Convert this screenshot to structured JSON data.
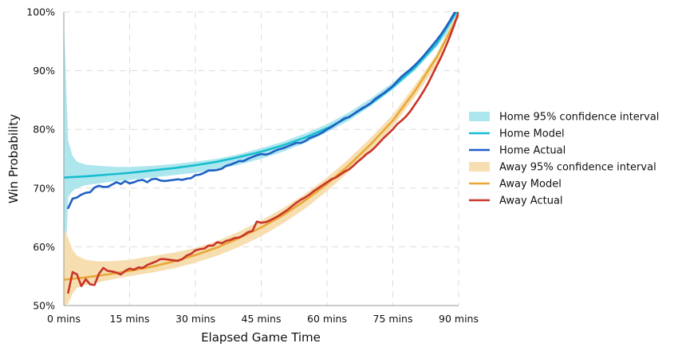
{
  "chart_data": {
    "type": "line",
    "title": "",
    "xlabel": "Elapsed Game Time",
    "ylabel": "Win Probability",
    "xlim": [
      0,
      90
    ],
    "ylim": [
      50,
      100
    ],
    "x_ticks": [
      {
        "value": 0,
        "label": "0 mins"
      },
      {
        "value": 15,
        "label": "15 mins"
      },
      {
        "value": 30,
        "label": "30 mins"
      },
      {
        "value": 45,
        "label": "45 mins"
      },
      {
        "value": 60,
        "label": "60 mins"
      },
      {
        "value": 75,
        "label": "75 mins"
      },
      {
        "value": 90,
        "label": "90 mins"
      }
    ],
    "y_ticks": [
      {
        "value": 50,
        "label": "50%"
      },
      {
        "value": 60,
        "label": "60%"
      },
      {
        "value": 70,
        "label": "70%"
      },
      {
        "value": 80,
        "label": "80%"
      },
      {
        "value": 90,
        "label": "90%"
      },
      {
        "value": 100,
        "label": "100%"
      }
    ],
    "grid": true,
    "legend_position": "right",
    "series": [
      {
        "name": "Home 95% confidence interval",
        "kind": "band",
        "color": "#aee6ee",
        "x": [
          0,
          1,
          2,
          3,
          5,
          8,
          12,
          15,
          20,
          25,
          30,
          35,
          40,
          45,
          50,
          55,
          60,
          65,
          70,
          75,
          80,
          85,
          88,
          90
        ],
        "lower": [
          50,
          68.5,
          69.5,
          70.0,
          70.5,
          70.8,
          71.2,
          71.4,
          71.8,
          72.2,
          72.6,
          73.2,
          74.0,
          75.0,
          76.2,
          77.7,
          79.5,
          81.5,
          84.0,
          86.8,
          90.0,
          94.0,
          97.0,
          100
        ],
        "upper": [
          99,
          78.0,
          75.5,
          74.5,
          74.0,
          73.8,
          73.6,
          73.6,
          73.8,
          74.1,
          74.5,
          75.0,
          75.8,
          76.8,
          77.9,
          79.3,
          80.9,
          82.9,
          85.3,
          88.0,
          91.2,
          95.0,
          97.8,
          100
        ]
      },
      {
        "name": "Home Model",
        "kind": "line",
        "color": "#17becf",
        "x": [
          0,
          5,
          10,
          15,
          20,
          25,
          30,
          35,
          40,
          45,
          50,
          55,
          60,
          65,
          70,
          75,
          80,
          85,
          90
        ],
        "y": [
          71.8,
          72.0,
          72.3,
          72.6,
          73.0,
          73.4,
          73.9,
          74.5,
          75.3,
          76.2,
          77.3,
          78.6,
          80.2,
          82.1,
          84.4,
          87.2,
          90.5,
          94.6,
          100.5
        ]
      },
      {
        "name": "Home Actual",
        "kind": "line",
        "color": "#1f5fc4",
        "x": [
          1,
          2,
          3,
          4,
          5,
          6,
          7,
          8,
          9,
          10,
          11,
          12,
          13,
          14,
          15,
          16,
          17,
          18,
          19,
          20,
          21,
          22,
          23,
          24,
          25,
          26,
          27,
          28,
          29,
          30,
          31,
          32,
          33,
          34,
          35,
          36,
          37,
          38,
          39,
          40,
          41,
          42,
          43,
          44,
          45,
          46,
          47,
          48,
          49,
          50,
          51,
          52,
          53,
          54,
          55,
          56,
          57,
          58,
          59,
          60,
          61,
          62,
          63,
          64,
          65,
          66,
          67,
          68,
          69,
          70,
          71,
          72,
          73,
          74,
          75,
          76,
          77,
          78,
          79,
          80,
          81,
          82,
          83,
          84,
          85,
          86,
          87,
          88,
          89,
          90
        ],
        "y": [
          66.6,
          68.2,
          68.4,
          68.9,
          69.2,
          69.3,
          70.1,
          70.4,
          70.2,
          70.2,
          70.6,
          71.0,
          70.7,
          71.2,
          70.8,
          71.0,
          71.3,
          71.4,
          71.0,
          71.5,
          71.6,
          71.3,
          71.2,
          71.3,
          71.4,
          71.5,
          71.4,
          71.6,
          71.7,
          72.2,
          72.3,
          72.6,
          73.0,
          73.0,
          73.1,
          73.3,
          73.8,
          74.0,
          74.3,
          74.6,
          74.6,
          75.0,
          75.3,
          75.6,
          75.8,
          75.7,
          75.9,
          76.3,
          76.6,
          76.8,
          77.1,
          77.4,
          77.7,
          77.7,
          78.0,
          78.5,
          78.8,
          79.1,
          79.5,
          80.0,
          80.4,
          80.9,
          81.4,
          81.9,
          82.1,
          82.6,
          83.1,
          83.6,
          84.0,
          84.5,
          85.2,
          85.7,
          86.2,
          86.8,
          87.4,
          88.2,
          89.0,
          89.6,
          90.2,
          90.9,
          91.7,
          92.5,
          93.4,
          94.3,
          95.2,
          96.2,
          97.3,
          98.5,
          99.8,
          101.0
        ]
      },
      {
        "name": "Away 95% confidence interval",
        "kind": "band",
        "color": "#f7deb0",
        "x": [
          0,
          1,
          2,
          3,
          5,
          8,
          12,
          15,
          20,
          25,
          30,
          35,
          40,
          45,
          50,
          55,
          60,
          65,
          70,
          75,
          80,
          85,
          88,
          90
        ],
        "lower": [
          50,
          50.3,
          52.0,
          53.0,
          53.5,
          54.0,
          54.6,
          55.0,
          55.6,
          56.3,
          57.3,
          58.5,
          60.0,
          61.8,
          64.0,
          66.5,
          69.5,
          72.8,
          76.5,
          80.5,
          85.5,
          91.0,
          96.5,
          100
        ],
        "upper": [
          63,
          61.5,
          59.5,
          58.5,
          57.8,
          57.5,
          57.6,
          57.8,
          58.4,
          59.0,
          59.8,
          61.0,
          62.6,
          64.5,
          66.6,
          69.0,
          71.8,
          75.0,
          78.6,
          82.5,
          87.5,
          92.8,
          97.5,
          100
        ]
      },
      {
        "name": "Away Model",
        "kind": "line",
        "color": "#e8a838",
        "x": [
          0,
          5,
          10,
          15,
          20,
          25,
          30,
          35,
          40,
          45,
          50,
          55,
          60,
          65,
          70,
          75,
          80,
          85,
          90
        ],
        "y": [
          54.4,
          54.8,
          55.3,
          55.9,
          56.6,
          57.5,
          58.6,
          59.9,
          61.5,
          63.3,
          65.4,
          67.9,
          70.7,
          73.9,
          77.5,
          81.5,
          86.5,
          92.3,
          99.5
        ]
      },
      {
        "name": "Away Actual",
        "kind": "line",
        "color": "#c8352a",
        "x": [
          1,
          2,
          3,
          4,
          5,
          6,
          7,
          8,
          9,
          10,
          11,
          12,
          13,
          14,
          15,
          16,
          17,
          18,
          19,
          20,
          21,
          22,
          23,
          24,
          25,
          26,
          27,
          28,
          29,
          30,
          31,
          32,
          33,
          34,
          35,
          36,
          37,
          38,
          39,
          40,
          41,
          42,
          43,
          44,
          45,
          46,
          47,
          48,
          49,
          50,
          51,
          52,
          53,
          54,
          55,
          56,
          57,
          58,
          59,
          60,
          61,
          62,
          63,
          64,
          65,
          66,
          67,
          68,
          69,
          70,
          71,
          72,
          73,
          74,
          75,
          76,
          77,
          78,
          79,
          80,
          81,
          82,
          83,
          84,
          85,
          86,
          87,
          88,
          89,
          90
        ],
        "y": [
          52.2,
          55.7,
          55.3,
          53.3,
          54.5,
          53.6,
          53.5,
          55.4,
          56.4,
          55.9,
          55.8,
          55.6,
          55.3,
          55.9,
          56.3,
          56.1,
          56.5,
          56.4,
          56.9,
          57.2,
          57.5,
          57.9,
          57.9,
          57.8,
          57.7,
          57.6,
          57.9,
          58.5,
          58.8,
          59.4,
          59.6,
          59.7,
          60.2,
          60.2,
          60.8,
          60.6,
          61.0,
          61.2,
          61.5,
          61.6,
          62.0,
          62.5,
          62.7,
          64.3,
          64.1,
          64.2,
          64.5,
          64.9,
          65.3,
          65.8,
          66.3,
          66.9,
          67.5,
          68.0,
          68.4,
          68.9,
          69.5,
          70.0,
          70.5,
          71.0,
          71.5,
          71.8,
          72.3,
          72.8,
          73.2,
          73.8,
          74.5,
          75.1,
          75.8,
          76.3,
          77.0,
          77.8,
          78.6,
          79.3,
          80.0,
          80.9,
          81.5,
          82.2,
          83.1,
          84.2,
          85.3,
          86.5,
          87.8,
          89.3,
          90.8,
          92.3,
          94.0,
          95.8,
          97.8,
          100.0
        ]
      }
    ]
  }
}
